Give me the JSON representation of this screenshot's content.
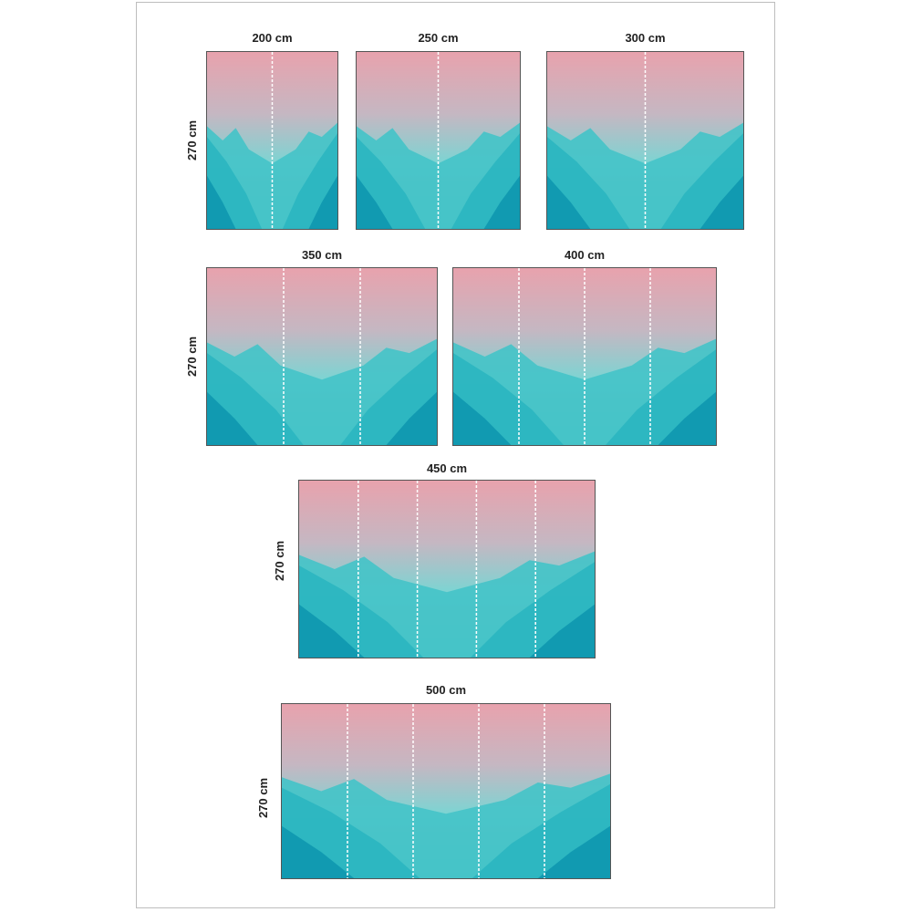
{
  "panels": [
    {
      "width_label": "200 cm",
      "height_label": "270 cm",
      "strips": 2
    },
    {
      "width_label": "250 cm",
      "height_label": "",
      "strips": 2
    },
    {
      "width_label": "300 cm",
      "height_label": "",
      "strips": 2
    },
    {
      "width_label": "350 cm",
      "height_label": "270 cm",
      "strips": 3
    },
    {
      "width_label": "400 cm",
      "height_label": "",
      "strips": 4
    },
    {
      "width_label": "450 cm",
      "height_label": "270 cm",
      "strips": 5
    },
    {
      "width_label": "500 cm",
      "height_label": "270 cm",
      "strips": 5
    }
  ],
  "colors": {
    "sky_top": "#e8a2ad",
    "sky_mid": "#c5b7c2",
    "sky_bottom": "#7fd3d2",
    "mountain_light": "#45c3c8",
    "mountain_mid": "#2bb5c0",
    "mountain_dark": "#0f97b0",
    "divider": "#ffffff"
  }
}
